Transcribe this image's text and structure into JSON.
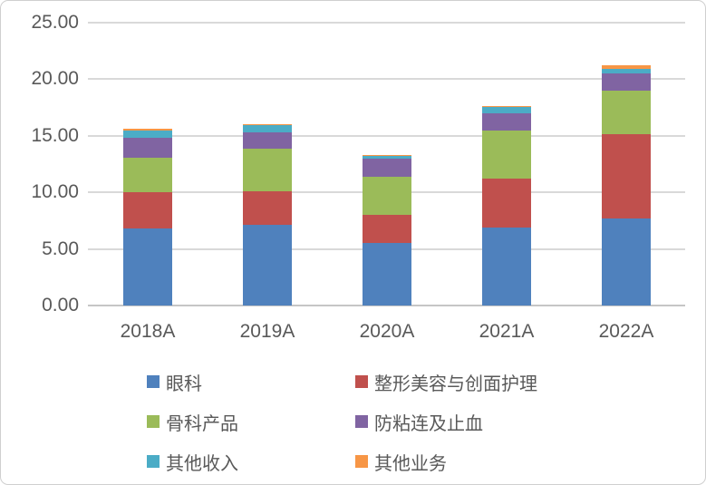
{
  "frame": {
    "background": "#ffffff",
    "border_color": "#cfcfcf"
  },
  "chart_data": {
    "type": "bar",
    "stacked": true,
    "title": "",
    "xlabel": "",
    "ylabel": "",
    "categories": [
      "2018A",
      "2019A",
      "2020A",
      "2021A",
      "2022A"
    ],
    "series": [
      {
        "name": "眼科",
        "color": "#4F81BD",
        "values": [
          6.8,
          7.15,
          5.55,
          6.85,
          7.65
        ]
      },
      {
        "name": "整形美容与创面护理",
        "color": "#C0504D",
        "values": [
          3.2,
          2.95,
          2.45,
          4.4,
          7.5
        ]
      },
      {
        "name": "骨科产品",
        "color": "#9BBB59",
        "values": [
          3.05,
          3.75,
          3.4,
          4.2,
          3.8
        ]
      },
      {
        "name": "防粘连及止血",
        "color": "#8064A2",
        "values": [
          1.8,
          1.45,
          1.55,
          1.55,
          1.6
        ]
      },
      {
        "name": "其他收入",
        "color": "#4BACC6",
        "values": [
          0.65,
          0.65,
          0.3,
          0.55,
          0.4
        ]
      },
      {
        "name": "其他业务",
        "color": "#F79646",
        "values": [
          0.15,
          0.1,
          0.05,
          0.1,
          0.25
        ]
      }
    ],
    "totals": [
      15.65,
      16.05,
      13.3,
      17.65,
      21.2
    ],
    "ylim": [
      0,
      25
    ],
    "yticks": [
      0,
      5,
      10,
      15,
      20,
      25
    ],
    "ytick_labels": [
      "0.00",
      "5.00",
      "10.00",
      "15.00",
      "20.00",
      "25.00"
    ],
    "grid": true,
    "gridline_color": "#D9D9D9",
    "baseline_color": "#C6C6C6",
    "axis_text_color": "#595959",
    "legend_position": "bottom",
    "legend_columns": 2
  }
}
